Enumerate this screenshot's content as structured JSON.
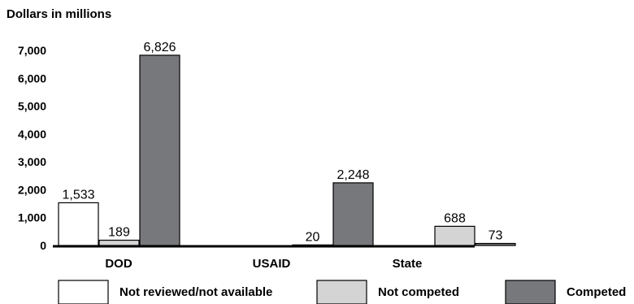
{
  "chart_data": {
    "type": "bar",
    "ylabel": "Dollars in millions",
    "categories": [
      "DOD",
      "USAID",
      "State"
    ],
    "yticks": [
      "7,000",
      "6,000",
      "5,000",
      "4,000",
      "3,000",
      "2,000",
      "1,000",
      "0"
    ],
    "ytick_values": [
      7000,
      6000,
      5000,
      4000,
      3000,
      2000,
      1000,
      0
    ],
    "ylim": [
      0,
      7000
    ],
    "series": [
      {
        "name": "Not reviewed/not available",
        "color": "#ffffff",
        "values": [
          1533,
          0,
          0
        ],
        "labels": [
          "1,533",
          "",
          ""
        ]
      },
      {
        "name": "Not competed",
        "color": "#d4d4d4",
        "values": [
          189,
          20,
          688
        ],
        "labels": [
          "189",
          "20",
          "688"
        ]
      },
      {
        "name": "Competed",
        "color": "#77787b",
        "values": [
          6826,
          2248,
          73
        ],
        "labels": [
          "6,826",
          "2,248",
          "73"
        ]
      }
    ],
    "legend": "bottom",
    "grid": false
  }
}
